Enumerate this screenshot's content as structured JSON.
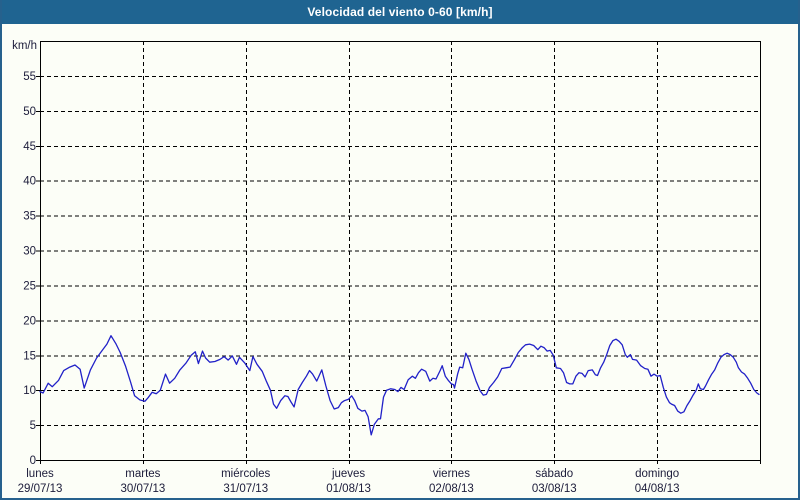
{
  "window": {
    "title": "Velocidad del viento 0-60 [km/h]"
  },
  "colors": {
    "titlebar_bg": "#1f6491",
    "window_border": "#26618d",
    "background": "#fcfef7",
    "grid": "#000000",
    "label_text": "#1c1c3a",
    "line": "#2121c8"
  },
  "chart_data": {
    "type": "line",
    "title": "Velocidad del viento 0-60 [km/h]",
    "xlabel": "",
    "ylabel": "km/h",
    "ylim": [
      0,
      60
    ],
    "yticks": [
      0,
      5,
      10,
      15,
      20,
      25,
      30,
      35,
      40,
      45,
      50,
      55
    ],
    "grid": true,
    "legend": "none",
    "x_categories": [
      {
        "name": "lunes",
        "date": "29/07/13"
      },
      {
        "name": "martes",
        "date": "30/07/13"
      },
      {
        "name": "miércoles",
        "date": "31/07/13"
      },
      {
        "name": "jueves",
        "date": "01/08/13"
      },
      {
        "name": "viernes",
        "date": "02/08/13"
      },
      {
        "name": "sábado",
        "date": "03/08/13"
      },
      {
        "name": "domingo",
        "date": "04/08/13"
      }
    ],
    "x_unit": "days_from_start",
    "series": [
      {
        "name": "Velocidad del viento",
        "color": "#2121c8",
        "points": [
          [
            0.0,
            9.8
          ],
          [
            0.03,
            9.6
          ],
          [
            0.08,
            11.0
          ],
          [
            0.12,
            10.5
          ],
          [
            0.18,
            11.4
          ],
          [
            0.23,
            12.8
          ],
          [
            0.29,
            13.3
          ],
          [
            0.34,
            13.6
          ],
          [
            0.39,
            13.0
          ],
          [
            0.43,
            10.3
          ],
          [
            0.49,
            12.9
          ],
          [
            0.55,
            14.6
          ],
          [
            0.61,
            15.8
          ],
          [
            0.65,
            16.6
          ],
          [
            0.69,
            17.8
          ],
          [
            0.74,
            16.6
          ],
          [
            0.78,
            15.4
          ],
          [
            0.83,
            13.5
          ],
          [
            0.88,
            11.2
          ],
          [
            0.92,
            9.2
          ],
          [
            0.97,
            8.6
          ],
          [
            1.02,
            8.4
          ],
          [
            1.05,
            8.9
          ],
          [
            1.09,
            9.7
          ],
          [
            1.13,
            9.5
          ],
          [
            1.17,
            10.0
          ],
          [
            1.22,
            12.3
          ],
          [
            1.26,
            11.0
          ],
          [
            1.31,
            11.7
          ],
          [
            1.36,
            12.9
          ],
          [
            1.42,
            13.9
          ],
          [
            1.47,
            15.0
          ],
          [
            1.51,
            15.5
          ],
          [
            1.54,
            13.8
          ],
          [
            1.58,
            15.6
          ],
          [
            1.61,
            14.6
          ],
          [
            1.65,
            14.0
          ],
          [
            1.7,
            14.1
          ],
          [
            1.75,
            14.4
          ],
          [
            1.79,
            14.8
          ],
          [
            1.83,
            14.3
          ],
          [
            1.87,
            14.9
          ],
          [
            1.91,
            13.7
          ],
          [
            1.94,
            14.7
          ],
          [
            1.99,
            13.9
          ],
          [
            2.04,
            12.8
          ],
          [
            2.07,
            14.8
          ],
          [
            2.11,
            13.7
          ],
          [
            2.16,
            12.7
          ],
          [
            2.2,
            11.3
          ],
          [
            2.24,
            10.0
          ],
          [
            2.27,
            8.0
          ],
          [
            2.3,
            7.4
          ],
          [
            2.34,
            8.5
          ],
          [
            2.38,
            9.2
          ],
          [
            2.41,
            9.1
          ],
          [
            2.44,
            8.3
          ],
          [
            2.47,
            7.6
          ],
          [
            2.51,
            10.1
          ],
          [
            2.55,
            11.1
          ],
          [
            2.59,
            12.0
          ],
          [
            2.62,
            12.8
          ],
          [
            2.65,
            12.3
          ],
          [
            2.69,
            11.3
          ],
          [
            2.74,
            12.9
          ],
          [
            2.78,
            10.6
          ],
          [
            2.82,
            8.5
          ],
          [
            2.86,
            7.3
          ],
          [
            2.9,
            7.5
          ],
          [
            2.93,
            8.2
          ],
          [
            2.96,
            8.5
          ],
          [
            3.0,
            8.7
          ],
          [
            3.03,
            9.2
          ],
          [
            3.06,
            8.5
          ],
          [
            3.09,
            7.4
          ],
          [
            3.13,
            7.0
          ],
          [
            3.16,
            7.1
          ],
          [
            3.19,
            6.2
          ],
          [
            3.22,
            3.6
          ],
          [
            3.25,
            5.1
          ],
          [
            3.29,
            5.9
          ],
          [
            3.31,
            5.9
          ],
          [
            3.34,
            9.0
          ],
          [
            3.37,
            10.0
          ],
          [
            3.41,
            10.2
          ],
          [
            3.45,
            10.1
          ],
          [
            3.48,
            9.8
          ],
          [
            3.51,
            10.4
          ],
          [
            3.54,
            10.1
          ],
          [
            3.58,
            11.5
          ],
          [
            3.62,
            12.0
          ],
          [
            3.65,
            11.7
          ],
          [
            3.68,
            12.5
          ],
          [
            3.71,
            13.0
          ],
          [
            3.75,
            12.7
          ],
          [
            3.79,
            11.3
          ],
          [
            3.82,
            11.7
          ],
          [
            3.85,
            11.6
          ],
          [
            3.89,
            12.8
          ],
          [
            3.91,
            13.5
          ],
          [
            3.94,
            12.0
          ],
          [
            3.97,
            11.4
          ],
          [
            4.0,
            10.9
          ],
          [
            4.02,
            10.8
          ],
          [
            4.03,
            10.3
          ],
          [
            4.06,
            12.3
          ],
          [
            4.08,
            13.3
          ],
          [
            4.11,
            13.2
          ],
          [
            4.14,
            15.3
          ],
          [
            4.17,
            14.4
          ],
          [
            4.2,
            13.0
          ],
          [
            4.24,
            11.3
          ],
          [
            4.28,
            9.9
          ],
          [
            4.31,
            9.3
          ],
          [
            4.34,
            9.4
          ],
          [
            4.37,
            10.4
          ],
          [
            4.41,
            11.1
          ],
          [
            4.45,
            11.9
          ],
          [
            4.49,
            13.1
          ],
          [
            4.53,
            13.2
          ],
          [
            4.57,
            13.3
          ],
          [
            4.61,
            14.3
          ],
          [
            4.65,
            15.4
          ],
          [
            4.69,
            16.1
          ],
          [
            4.72,
            16.5
          ],
          [
            4.76,
            16.6
          ],
          [
            4.8,
            16.4
          ],
          [
            4.84,
            15.8
          ],
          [
            4.87,
            16.3
          ],
          [
            4.9,
            16.1
          ],
          [
            4.93,
            15.6
          ],
          [
            4.96,
            15.7
          ],
          [
            4.99,
            15.0
          ],
          [
            5.02,
            13.2
          ],
          [
            5.06,
            13.1
          ],
          [
            5.09,
            12.5
          ],
          [
            5.12,
            11.1
          ],
          [
            5.15,
            10.9
          ],
          [
            5.18,
            10.9
          ],
          [
            5.21,
            12.0
          ],
          [
            5.24,
            12.5
          ],
          [
            5.27,
            12.4
          ],
          [
            5.3,
            11.9
          ],
          [
            5.33,
            12.8
          ],
          [
            5.37,
            12.9
          ],
          [
            5.4,
            12.2
          ],
          [
            5.42,
            12.1
          ],
          [
            5.45,
            13.2
          ],
          [
            5.48,
            14.0
          ],
          [
            5.51,
            15.1
          ],
          [
            5.54,
            16.4
          ],
          [
            5.57,
            17.1
          ],
          [
            5.6,
            17.3
          ],
          [
            5.63,
            17.0
          ],
          [
            5.66,
            16.5
          ],
          [
            5.69,
            15.1
          ],
          [
            5.71,
            14.7
          ],
          [
            5.74,
            15.1
          ],
          [
            5.76,
            14.4
          ],
          [
            5.8,
            14.3
          ],
          [
            5.84,
            13.5
          ],
          [
            5.88,
            13.1
          ],
          [
            5.91,
            13.0
          ],
          [
            5.94,
            12.0
          ],
          [
            5.97,
            12.3
          ],
          [
            6.0,
            12.0
          ],
          [
            6.03,
            12.1
          ],
          [
            6.06,
            10.4
          ],
          [
            6.09,
            9.0
          ],
          [
            6.12,
            8.2
          ],
          [
            6.14,
            8.0
          ],
          [
            6.17,
            7.8
          ],
          [
            6.2,
            7.0
          ],
          [
            6.23,
            6.7
          ],
          [
            6.26,
            6.9
          ],
          [
            6.29,
            7.8
          ],
          [
            6.32,
            8.5
          ],
          [
            6.35,
            9.3
          ],
          [
            6.38,
            10.0
          ],
          [
            6.4,
            10.9
          ],
          [
            6.42,
            10.2
          ],
          [
            6.45,
            10.1
          ],
          [
            6.47,
            10.6
          ],
          [
            6.5,
            11.5
          ],
          [
            6.53,
            12.3
          ],
          [
            6.56,
            12.9
          ],
          [
            6.59,
            13.9
          ],
          [
            6.62,
            14.7
          ],
          [
            6.65,
            15.1
          ],
          [
            6.68,
            15.3
          ],
          [
            6.71,
            15.1
          ],
          [
            6.74,
            14.7
          ],
          [
            6.77,
            14.0
          ],
          [
            6.79,
            13.2
          ],
          [
            6.82,
            12.6
          ],
          [
            6.85,
            12.3
          ],
          [
            6.88,
            11.7
          ],
          [
            6.91,
            11.0
          ],
          [
            6.94,
            10.1
          ],
          [
            6.97,
            9.6
          ],
          [
            6.99,
            9.4
          ]
        ]
      }
    ]
  }
}
